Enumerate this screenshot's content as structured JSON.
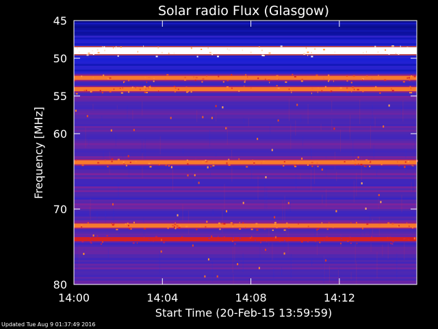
{
  "chart_data": {
    "type": "heatmap",
    "title": "Solar radio Flux (Glasgow)",
    "xlabel": "Start Time (20-Feb-15 13:59:59)",
    "ylabel": "Frequency [MHz]",
    "x_range_minutes": [
      0,
      15.5
    ],
    "x_ticks": [
      {
        "minute": 0,
        "label": "14:00"
      },
      {
        "minute": 4,
        "label": "14:04"
      },
      {
        "minute": 8,
        "label": "14:08"
      },
      {
        "minute": 12,
        "label": "14:12"
      }
    ],
    "y_range_mhz": [
      45,
      80
    ],
    "y_scale": "linear, increasing downward",
    "y_ticks": [
      45,
      50,
      55,
      60,
      70,
      80
    ],
    "colormap": [
      "#000060",
      "#1a20d8",
      "#5028b0",
      "#9a2090",
      "#d82020",
      "#ff9030",
      "#ffffff"
    ],
    "bright_bands_mhz": [
      {
        "freq": 49.0,
        "intensity": "saturated white"
      },
      {
        "freq": 52.6,
        "intensity": "high"
      },
      {
        "freq": 54.1,
        "intensity": "high"
      },
      {
        "freq": 63.8,
        "intensity": "high"
      },
      {
        "freq": 72.2,
        "intensity": "high"
      },
      {
        "freq": 74.0,
        "intensity": "medium"
      }
    ]
  },
  "footer": "Updated Tue Aug  9 01:37:49 2016"
}
